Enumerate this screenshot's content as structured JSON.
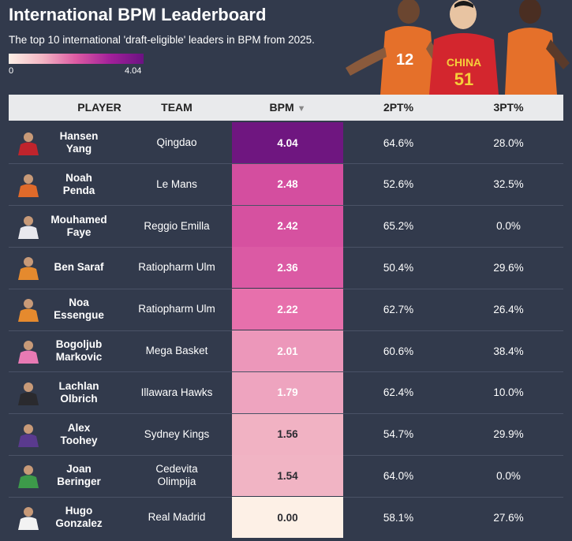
{
  "title": "International BPM Leaderboard",
  "subtitle": "The top 10 international 'draft-eligible' leaders in BPM from 2025.",
  "legend": {
    "min_label": "0",
    "max_label": "4.04"
  },
  "hero": {
    "jersey_text": "CHINA",
    "jersey_number": "51",
    "left_number": "12"
  },
  "headers": {
    "player": "PLAYER",
    "team": "TEAM",
    "bpm": "BPM",
    "bpm_sort": "▼",
    "pt2": "2PT%",
    "pt3": "3PT%"
  },
  "colors": {
    "background": "#323a4c",
    "header_bg": "#e9eaec",
    "scale_low": "#fdf0e6",
    "scale_high": "#6b1282"
  },
  "chart_data": {
    "type": "table",
    "title": "International BPM Leaderboard",
    "columns": [
      "PLAYER",
      "TEAM",
      "BPM",
      "2PT%",
      "3PT%"
    ],
    "sorted_by": "BPM descending",
    "color_scale": {
      "column": "BPM",
      "min": 0,
      "max": 4.04
    },
    "rows": [
      {
        "first": "Hansen",
        "last": "Yang",
        "team": "Qingdao",
        "team2": "",
        "bpm": "4.04",
        "bpm_value": 4.04,
        "pt2": "64.6%",
        "pt3": "28.0%",
        "jersey_color": "#c0242c"
      },
      {
        "first": "Noah",
        "last": "Penda",
        "team": "Le Mans",
        "team2": "",
        "bpm": "2.48",
        "bpm_value": 2.48,
        "pt2": "52.6%",
        "pt3": "32.5%",
        "jersey_color": "#e06a2a"
      },
      {
        "first": "Mouhamed",
        "last": "Faye",
        "team": "Reggio Emilla",
        "team2": "",
        "bpm": "2.42",
        "bpm_value": 2.42,
        "pt2": "65.2%",
        "pt3": "0.0%",
        "jersey_color": "#e8e8ee"
      },
      {
        "first": "Ben Saraf",
        "last": "",
        "team": "Ratiopharm Ulm",
        "team2": "",
        "bpm": "2.36",
        "bpm_value": 2.36,
        "pt2": "50.4%",
        "pt3": "29.6%",
        "jersey_color": "#e58a2e"
      },
      {
        "first": "Noa",
        "last": "Essengue",
        "team": "Ratiopharm Ulm",
        "team2": "",
        "bpm": "2.22",
        "bpm_value": 2.22,
        "pt2": "62.7%",
        "pt3": "26.4%",
        "jersey_color": "#e58a2e"
      },
      {
        "first": "Bogoljub",
        "last": "Markovic",
        "team": "Mega Basket",
        "team2": "",
        "bpm": "2.01",
        "bpm_value": 2.01,
        "pt2": "60.6%",
        "pt3": "38.4%",
        "jersey_color": "#e87ab4"
      },
      {
        "first": "Lachlan",
        "last": "Olbrich",
        "team": "Illawara Hawks",
        "team2": "",
        "bpm": "1.79",
        "bpm_value": 1.79,
        "pt2": "62.4%",
        "pt3": "10.0%",
        "jersey_color": "#2a2a2e"
      },
      {
        "first": "Alex",
        "last": "Toohey",
        "team": "Sydney Kings",
        "team2": "",
        "bpm": "1.56",
        "bpm_value": 1.56,
        "pt2": "54.7%",
        "pt3": "29.9%",
        "jersey_color": "#5a3a8e"
      },
      {
        "first": "Joan",
        "last": "Beringer",
        "team": "Cedevita",
        "team2": "Olimpija",
        "bpm": "1.54",
        "bpm_value": 1.54,
        "pt2": "64.0%",
        "pt3": "0.0%",
        "jersey_color": "#3d9a4a"
      },
      {
        "first": "Hugo",
        "last": "Gonzalez",
        "team": "Real Madrid",
        "team2": "",
        "bpm": "0.00",
        "bpm_value": 0.0,
        "pt2": "58.1%",
        "pt3": "27.6%",
        "jersey_color": "#f2f2f2"
      }
    ]
  }
}
